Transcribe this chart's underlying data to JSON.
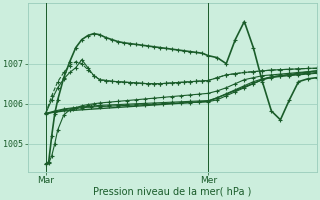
{
  "bg_color": "#cceedd",
  "grid_color": "#99ccbb",
  "line_color": "#1a5c2a",
  "xlabel": "Pression niveau de la mer( hPa )",
  "yticks": [
    1005,
    1006,
    1007
  ],
  "xlim": [
    0,
    96
  ],
  "ylim": [
    1004.3,
    1008.5
  ],
  "xtick_positions": [
    6,
    60
  ],
  "xtick_labels": [
    "Mar",
    "Mer"
  ],
  "vline_positions": [
    6,
    60
  ],
  "series": [
    {
      "x": [
        6,
        8,
        10,
        12,
        14,
        16,
        18,
        20,
        22,
        24,
        26,
        28,
        30,
        32,
        34,
        36,
        38,
        40,
        42,
        44,
        46,
        48,
        50,
        52,
        54,
        56,
        58,
        60,
        62,
        64,
        66,
        68,
        70,
        72,
        74,
        76,
        78,
        80,
        82,
        84,
        86,
        88,
        90,
        92,
        94,
        96
      ],
      "y": [
        1005.75,
        1005.78,
        1005.8,
        1005.82,
        1005.83,
        1005.84,
        1005.85,
        1005.86,
        1005.87,
        1005.88,
        1005.89,
        1005.9,
        1005.91,
        1005.92,
        1005.93,
        1005.94,
        1005.95,
        1005.96,
        1005.97,
        1005.98,
        1005.99,
        1006.0,
        1006.01,
        1006.02,
        1006.03,
        1006.04,
        1006.05,
        1006.06,
        1006.12,
        1006.18,
        1006.24,
        1006.3,
        1006.36,
        1006.42,
        1006.48,
        1006.54,
        1006.6,
        1006.65,
        1006.68,
        1006.7,
        1006.72,
        1006.74,
        1006.76,
        1006.78,
        1006.8,
        1006.82
      ],
      "ls": "-",
      "marker": null,
      "lw": 1.0
    },
    {
      "x": [
        6,
        9,
        12,
        15,
        18,
        21,
        24,
        27,
        30,
        33,
        36,
        39,
        42,
        45,
        48,
        51,
        54,
        57,
        60,
        63,
        66,
        69,
        72,
        75,
        78,
        81,
        84,
        87,
        90,
        93,
        96
      ],
      "y": [
        1005.75,
        1005.8,
        1005.85,
        1005.88,
        1005.9,
        1005.92,
        1005.93,
        1005.94,
        1005.95,
        1005.96,
        1005.97,
        1005.98,
        1005.99,
        1006.0,
        1006.01,
        1006.02,
        1006.03,
        1006.04,
        1006.05,
        1006.1,
        1006.2,
        1006.3,
        1006.4,
        1006.5,
        1006.6,
        1006.65,
        1006.68,
        1006.7,
        1006.72,
        1006.74,
        1006.76
      ],
      "ls": "-",
      "marker": "+",
      "lw": 0.8
    },
    {
      "x": [
        6,
        9,
        12,
        15,
        18,
        21,
        24,
        27,
        30,
        33,
        36,
        39,
        42,
        45,
        48,
        51,
        54,
        57,
        60,
        63,
        66,
        69,
        72,
        75,
        78,
        81,
        84,
        87,
        90,
        93,
        96
      ],
      "y": [
        1005.76,
        1005.82,
        1005.87,
        1005.9,
        1005.92,
        1005.94,
        1005.96,
        1005.97,
        1005.98,
        1005.99,
        1006.0,
        1006.01,
        1006.02,
        1006.03,
        1006.04,
        1006.05,
        1006.06,
        1006.07,
        1006.08,
        1006.15,
        1006.25,
        1006.35,
        1006.45,
        1006.55,
        1006.62,
        1006.67,
        1006.7,
        1006.72,
        1006.74,
        1006.76,
        1006.78
      ],
      "ls": "-",
      "marker": "+",
      "lw": 0.8
    },
    {
      "x": [
        6,
        8,
        10,
        12,
        14,
        16,
        18,
        20,
        22,
        24,
        26,
        28,
        30,
        32,
        34,
        36,
        38,
        40,
        42,
        44,
        46,
        48,
        50,
        52,
        54,
        56,
        58,
        60,
        63,
        66,
        69,
        72,
        75,
        78,
        81,
        84,
        87,
        90,
        93,
        96
      ],
      "y": [
        1005.76,
        1006.2,
        1006.55,
        1006.78,
        1006.95,
        1007.05,
        1007.0,
        1006.85,
        1006.7,
        1006.6,
        1006.58,
        1006.56,
        1006.55,
        1006.54,
        1006.53,
        1006.52,
        1006.51,
        1006.5,
        1006.5,
        1006.5,
        1006.51,
        1006.52,
        1006.53,
        1006.54,
        1006.55,
        1006.56,
        1006.57,
        1006.58,
        1006.65,
        1006.72,
        1006.75,
        1006.78,
        1006.8,
        1006.82,
        1006.84,
        1006.85,
        1006.86,
        1006.87,
        1006.88,
        1006.88
      ],
      "ls": "--",
      "marker": "+",
      "lw": 0.8
    },
    {
      "x": [
        6,
        8,
        10,
        12,
        14,
        16,
        18,
        20,
        22,
        24,
        26,
        28,
        30,
        32,
        34,
        36,
        38,
        40,
        42,
        44,
        46,
        48,
        50,
        52,
        54,
        56,
        58,
        60,
        63,
        66,
        69,
        72,
        75,
        78,
        81,
        84,
        87,
        90,
        93,
        96
      ],
      "y": [
        1005.76,
        1006.1,
        1006.4,
        1006.62,
        1006.78,
        1006.9,
        1007.1,
        1006.9,
        1006.7,
        1006.6,
        1006.58,
        1006.56,
        1006.55,
        1006.54,
        1006.53,
        1006.52,
        1006.51,
        1006.5,
        1006.5,
        1006.5,
        1006.51,
        1006.52,
        1006.53,
        1006.54,
        1006.55,
        1006.56,
        1006.57,
        1006.58,
        1006.65,
        1006.72,
        1006.75,
        1006.78,
        1006.8,
        1006.82,
        1006.84,
        1006.85,
        1006.86,
        1006.87,
        1006.88,
        1006.89
      ],
      "ls": "-",
      "marker": "+",
      "lw": 0.8
    },
    {
      "x": [
        6,
        7,
        8,
        9,
        10,
        12,
        14,
        16,
        18,
        20,
        22,
        24,
        26,
        28,
        30,
        32,
        34,
        36,
        38,
        40,
        42,
        44,
        46,
        48,
        50,
        52,
        54,
        56,
        58,
        60,
        63,
        66,
        69,
        72,
        75,
        78,
        81,
        84,
        87,
        90,
        93,
        96
      ],
      "y": [
        1004.5,
        1004.55,
        1005.2,
        1005.75,
        1006.1,
        1006.65,
        1007.05,
        1007.4,
        1007.6,
        1007.7,
        1007.75,
        1007.72,
        1007.65,
        1007.6,
        1007.55,
        1007.52,
        1007.5,
        1007.48,
        1007.46,
        1007.44,
        1007.42,
        1007.4,
        1007.38,
        1007.36,
        1007.34,
        1007.32,
        1007.3,
        1007.28,
        1007.26,
        1007.2,
        1007.15,
        1007.0,
        1007.6,
        1008.05,
        1007.4,
        1006.55,
        1005.82,
        1005.6,
        1006.1,
        1006.55,
        1006.62,
        1006.65
      ],
      "ls": "-",
      "marker": "+",
      "lw": 1.2
    },
    {
      "x": [
        6,
        7,
        8,
        9,
        10,
        12,
        14,
        16,
        18,
        20,
        22,
        24,
        27,
        30,
        33,
        36,
        39,
        42,
        45,
        48,
        51,
        54,
        57,
        60,
        63,
        66,
        69,
        72,
        75,
        78,
        81,
        84,
        87,
        90,
        93,
        96
      ],
      "y": [
        1004.5,
        1004.52,
        1004.7,
        1005.0,
        1005.35,
        1005.72,
        1005.85,
        1005.9,
        1005.95,
        1005.98,
        1006.0,
        1006.02,
        1006.04,
        1006.06,
        1006.08,
        1006.1,
        1006.12,
        1006.14,
        1006.16,
        1006.18,
        1006.2,
        1006.22,
        1006.24,
        1006.26,
        1006.32,
        1006.4,
        1006.5,
        1006.6,
        1006.65,
        1006.7,
        1006.72,
        1006.74,
        1006.76,
        1006.78,
        1006.8,
        1006.82
      ],
      "ls": "-",
      "marker": "+",
      "lw": 0.8
    }
  ]
}
